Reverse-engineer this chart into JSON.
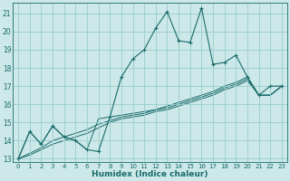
{
  "xlabel": "Humidex (Indice chaleur)",
  "background_color": "#cce8e8",
  "grid_color": "#99cccc",
  "line_color": "#1a6b6b",
  "xlim": [
    -0.5,
    23.5
  ],
  "ylim": [
    12.8,
    21.6
  ],
  "yticks": [
    13,
    14,
    15,
    16,
    17,
    18,
    19,
    20,
    21
  ],
  "xticks": [
    0,
    1,
    2,
    3,
    4,
    5,
    6,
    7,
    8,
    9,
    10,
    11,
    12,
    13,
    14,
    15,
    16,
    17,
    18,
    19,
    20,
    21,
    22,
    23
  ],
  "series_main": [
    13.0,
    14.5,
    13.8,
    14.8,
    14.2,
    14.0,
    13.5,
    13.4,
    15.3,
    17.5,
    18.5,
    19.0,
    20.2,
    21.1,
    19.5,
    19.4,
    21.3,
    18.2,
    18.3,
    18.7,
    17.5,
    16.5,
    17.0,
    17.0
  ],
  "series_trend1": [
    13.0,
    14.5,
    13.8,
    14.8,
    14.2,
    14.0,
    13.5,
    15.2,
    15.3,
    15.4,
    15.5,
    15.6,
    15.7,
    15.9,
    16.1,
    16.3,
    16.5,
    16.7,
    17.0,
    17.2,
    17.5,
    16.5,
    16.5,
    17.0
  ],
  "series_trend2": [
    13.0,
    13.3,
    13.6,
    14.0,
    14.2,
    14.4,
    14.6,
    14.9,
    15.1,
    15.3,
    15.4,
    15.5,
    15.7,
    15.8,
    16.0,
    16.2,
    16.4,
    16.6,
    16.9,
    17.1,
    17.4,
    16.5,
    16.5,
    17.0
  ],
  "series_trend3": [
    13.0,
    13.2,
    13.5,
    13.8,
    14.0,
    14.2,
    14.4,
    14.7,
    15.0,
    15.2,
    15.3,
    15.4,
    15.6,
    15.7,
    15.9,
    16.1,
    16.3,
    16.5,
    16.8,
    17.0,
    17.3,
    16.5,
    16.5,
    17.0
  ]
}
